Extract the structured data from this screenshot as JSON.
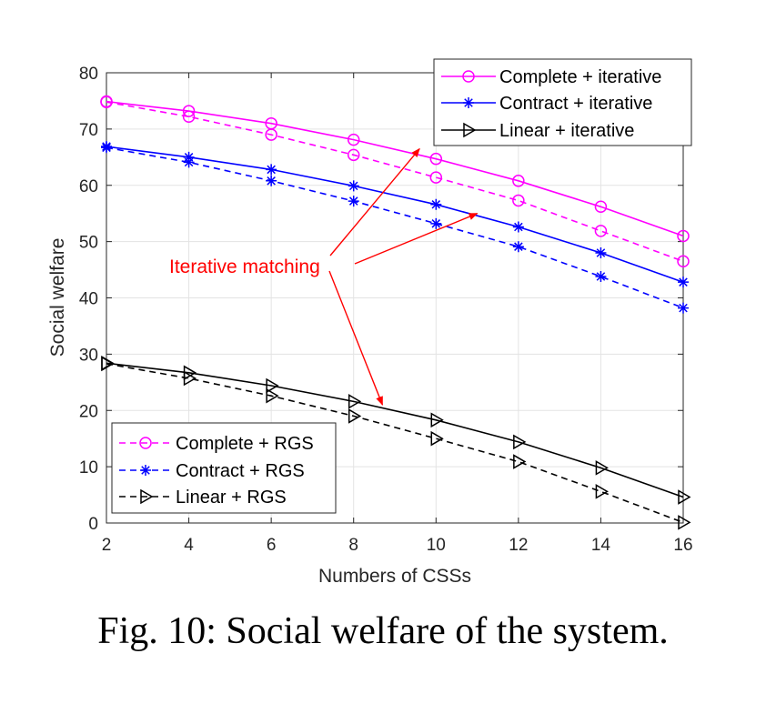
{
  "caption": "Fig. 10: Social welfare of the system.",
  "chart_data": {
    "type": "line",
    "xlabel": "Numbers of CSSs",
    "ylabel": "Social welfare",
    "xlim": [
      2,
      16
    ],
    "ylim": [
      0,
      80
    ],
    "xticks": [
      2,
      4,
      6,
      8,
      10,
      12,
      14,
      16
    ],
    "yticks": [
      0,
      10,
      20,
      30,
      40,
      50,
      60,
      70,
      80
    ],
    "grid": true,
    "x": [
      2,
      4,
      6,
      8,
      10,
      12,
      14,
      16
    ],
    "series": [
      {
        "name": "Complete + iterative",
        "values": [
          74.9,
          73.2,
          71.0,
          68.1,
          64.7,
          60.8,
          56.2,
          51.0
        ],
        "color": "#ff00ff",
        "marker": "circle",
        "dash": "solid"
      },
      {
        "name": "Contract + iterative",
        "values": [
          66.9,
          65.0,
          62.8,
          59.9,
          56.6,
          52.6,
          48.0,
          42.8
        ],
        "color": "#0000ff",
        "marker": "asterisk",
        "dash": "solid"
      },
      {
        "name": "Linear + iterative",
        "values": [
          28.4,
          26.7,
          24.4,
          21.6,
          18.3,
          14.4,
          9.8,
          4.6
        ],
        "color": "#000000",
        "marker": "triangle-right",
        "dash": "solid"
      },
      {
        "name": "Complete + RGS",
        "values": [
          74.8,
          72.2,
          69.0,
          65.4,
          61.4,
          57.3,
          51.9,
          46.5
        ],
        "color": "#ff00ff",
        "marker": "circle",
        "dash": "dashed"
      },
      {
        "name": "Contract + RGS",
        "values": [
          66.7,
          64.1,
          60.8,
          57.2,
          53.2,
          49.1,
          43.8,
          38.2
        ],
        "color": "#0000ff",
        "marker": "asterisk",
        "dash": "dashed"
      },
      {
        "name": "Linear + RGS",
        "values": [
          28.3,
          25.7,
          22.6,
          19.0,
          15.0,
          10.9,
          5.6,
          0.1
        ],
        "color": "#000000",
        "marker": "triangle-right",
        "dash": "dashed"
      }
    ],
    "legends": [
      {
        "placement": "top-right",
        "entries": [
          "Complete + iterative",
          "Contract + iterative",
          "Linear + iterative"
        ]
      },
      {
        "placement": "bottom-left",
        "entries": [
          "Complete + RGS",
          "Contract + RGS",
          "Linear + RGS"
        ]
      }
    ],
    "annotation": {
      "text": "Iterative matching",
      "color": "#ff0000",
      "arrow_targets": [
        [
          9.6,
          66.5
        ],
        [
          11.0,
          55.0
        ],
        [
          8.7,
          21.0
        ]
      ]
    }
  }
}
